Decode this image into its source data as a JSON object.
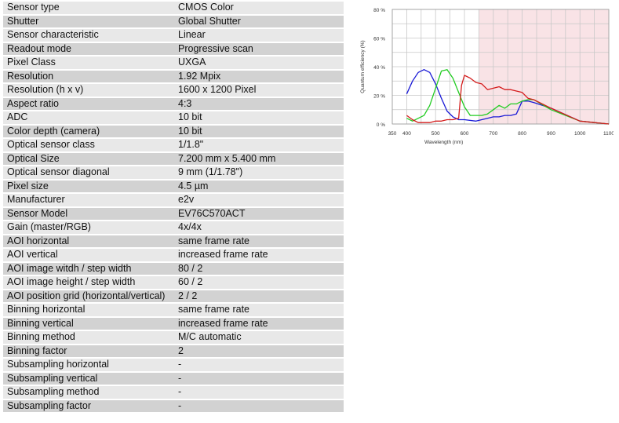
{
  "specs": [
    {
      "label": "Sensor type",
      "value": "CMOS Color"
    },
    {
      "label": "Shutter",
      "value": "Global Shutter"
    },
    {
      "label": "Sensor characteristic",
      "value": "Linear"
    },
    {
      "label": "Readout mode",
      "value": "Progressive scan"
    },
    {
      "label": "Pixel Class",
      "value": "UXGA"
    },
    {
      "label": "Resolution",
      "value": "1.92 Mpix"
    },
    {
      "label": "Resolution (h x v)",
      "value": "1600 x 1200 Pixel"
    },
    {
      "label": "Aspect ratio",
      "value": "4:3"
    },
    {
      "label": "ADC",
      "value": "10 bit"
    },
    {
      "label": "Color depth (camera)",
      "value": "10 bit"
    },
    {
      "label": "Optical sensor class",
      "value": "1/1.8\""
    },
    {
      "label": "Optical Size",
      "value": "7.200 mm x 5.400 mm"
    },
    {
      "label": "Optical sensor diagonal",
      "value": "9 mm (1/1.78\")"
    },
    {
      "label": "Pixel size",
      "value": "4.5 µm"
    },
    {
      "label": "Manufacturer",
      "value": "e2v"
    },
    {
      "label": "Sensor Model",
      "value": "EV76C570ACT"
    },
    {
      "label": "Gain (master/RGB)",
      "value": "4x/4x"
    },
    {
      "label": "AOI horizontal",
      "value": "same frame rate"
    },
    {
      "label": "AOI vertical",
      "value": "increased frame rate"
    },
    {
      "label": "AOI image witdh / step width",
      "value": "80 / 2"
    },
    {
      "label": "AOI image height / step width",
      "value": "60 / 2"
    },
    {
      "label": "AOI position grid (horizontal/vertical)",
      "value": "2 / 2"
    },
    {
      "label": "Binning horizontal",
      "value": "same frame rate"
    },
    {
      "label": "Binning vertical",
      "value": "increased frame rate"
    },
    {
      "label": "Binning method",
      "value": "M/C automatic"
    },
    {
      "label": "Binning factor",
      "value": "2"
    },
    {
      "label": "Subsampling horizontal",
      "value": "-"
    },
    {
      "label": "Subsampling vertical",
      "value": "-"
    },
    {
      "label": "Subsampling method",
      "value": "-"
    },
    {
      "label": "Subsampling factor",
      "value": "-"
    }
  ],
  "chart_data": {
    "type": "line",
    "xlabel": "Wavelength (nm)",
    "ylabel": "Quantum efficiency (%)",
    "xlim": [
      350,
      1100
    ],
    "ylim": [
      0,
      80
    ],
    "xticks": [
      350,
      400,
      500,
      600,
      700,
      800,
      900,
      1000,
      1100
    ],
    "yticks": [
      0,
      20,
      40,
      60,
      80
    ],
    "ytick_labels": [
      "0 %",
      "20 %",
      "40 %",
      "60 %",
      "80 %"
    ],
    "grid": true,
    "shaded_region": {
      "x_from": 650,
      "x_to": 1100,
      "color": "#f9e3e6"
    },
    "series": [
      {
        "color": "#1a1ad6",
        "x": [
          400,
          420,
          440,
          460,
          480,
          500,
          520,
          540,
          560,
          580,
          600,
          640,
          680,
          700,
          720,
          740,
          760,
          780,
          800,
          820,
          840,
          900,
          1000,
          1050,
          1100
        ],
        "y": [
          21,
          30,
          36,
          38,
          36,
          28,
          18,
          9,
          5,
          3,
          3,
          2,
          4,
          5,
          5,
          6,
          6,
          7,
          16,
          16,
          15,
          11,
          2,
          1,
          0
        ]
      },
      {
        "color": "#22cc22",
        "x": [
          400,
          420,
          460,
          480,
          500,
          520,
          540,
          560,
          580,
          600,
          620,
          640,
          660,
          680,
          700,
          720,
          740,
          760,
          780,
          800,
          820,
          840,
          900,
          1000,
          1050,
          1100
        ],
        "y": [
          4,
          2,
          6,
          13,
          25,
          37,
          38,
          32,
          22,
          12,
          6,
          6,
          6,
          7,
          10,
          13,
          11,
          14,
          14,
          16,
          17,
          17,
          10,
          2,
          1,
          0
        ]
      },
      {
        "color": "#d41c1c",
        "x": [
          400,
          420,
          440,
          460,
          480,
          500,
          520,
          540,
          560,
          580,
          590,
          600,
          620,
          640,
          660,
          680,
          700,
          720,
          740,
          760,
          780,
          800,
          820,
          840,
          900,
          1000,
          1050,
          1100
        ],
        "y": [
          6,
          3,
          1,
          1,
          1,
          2,
          2,
          3,
          3,
          4,
          27,
          34,
          32,
          29,
          28,
          24,
          25,
          26,
          24,
          24,
          23,
          22,
          18,
          17,
          11,
          2,
          1,
          0
        ]
      }
    ]
  }
}
